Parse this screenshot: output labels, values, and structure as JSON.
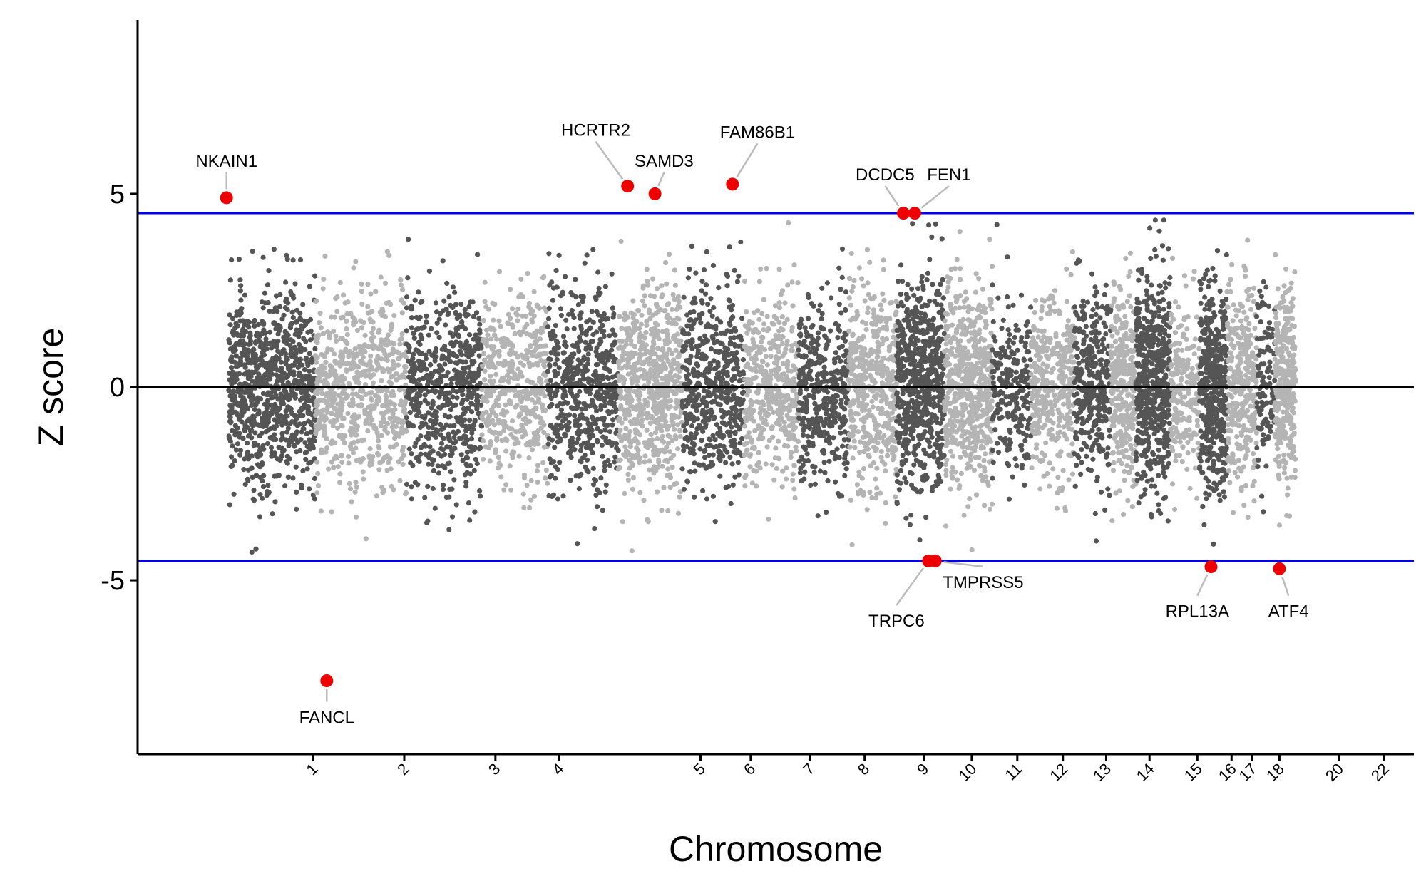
{
  "chart_data": {
    "type": "scatter",
    "subtype": "manhattan",
    "title": "",
    "xlabel": "Chromosome",
    "ylabel": "Z score",
    "ylim": [
      -9.5,
      9.5
    ],
    "yticks": [
      5,
      0,
      -5
    ],
    "ytick_labels": [
      "5",
      "0",
      "-5"
    ],
    "x_tick_labels": [
      "1",
      "2",
      "3",
      "4",
      "5",
      "6",
      "7",
      "8",
      "9",
      "10",
      "11",
      "12",
      "13",
      "14",
      "15",
      "16",
      "17",
      "18",
      "20",
      "22"
    ],
    "reference_lines": [
      {
        "name": "upper-threshold",
        "y": 4.5,
        "color": "#0000ee"
      },
      {
        "name": "zero-line",
        "y": 0,
        "color": "#000000"
      },
      {
        "name": "lower-threshold",
        "y": -4.5,
        "color": "#0000ee"
      }
    ],
    "colors": {
      "dark": "#555555",
      "light": "#b4b4b4",
      "highlight": "#ee0000",
      "leader": "#bbbbbb"
    },
    "chromosomes": [
      {
        "chr": "1",
        "start": 0.0,
        "end": 1.9,
        "shade": "dark",
        "n": 880,
        "spread": 1.3
      },
      {
        "chr": "2",
        "start": 1.9,
        "end": 3.9,
        "shade": "light",
        "n": 700,
        "spread": 1.2
      },
      {
        "chr": "3",
        "start": 3.9,
        "end": 5.55,
        "shade": "dark",
        "n": 620,
        "spread": 1.25
      },
      {
        "chr": "4",
        "start": 5.55,
        "end": 7.0,
        "shade": "light",
        "n": 480,
        "spread": 1.15
      },
      {
        "chr": "5",
        "start": 7.0,
        "end": 8.55,
        "shade": "dark",
        "n": 560,
        "spread": 1.25
      },
      {
        "chr": "6",
        "start": 8.55,
        "end": 9.95,
        "shade": "light",
        "n": 650,
        "spread": 1.25
      },
      {
        "chr": "7",
        "start": 9.95,
        "end": 11.3,
        "shade": "dark",
        "n": 520,
        "spread": 1.25
      },
      {
        "chr": "8",
        "start": 11.3,
        "end": 12.5,
        "shade": "light",
        "n": 430,
        "spread": 1.2
      },
      {
        "chr": "9",
        "start": 12.5,
        "end": 13.6,
        "shade": "dark",
        "n": 400,
        "spread": 1.2
      },
      {
        "chr": "10",
        "start": 13.6,
        "end": 14.65,
        "shade": "light",
        "n": 460,
        "spread": 1.3
      },
      {
        "chr": "11",
        "start": 14.65,
        "end": 15.7,
        "shade": "dark",
        "n": 660,
        "spread": 1.35
      },
      {
        "chr": "12",
        "start": 15.7,
        "end": 16.75,
        "shade": "light",
        "n": 600,
        "spread": 1.3
      },
      {
        "chr": "13",
        "start": 16.75,
        "end": 17.6,
        "shade": "dark",
        "n": 230,
        "spread": 1.15
      },
      {
        "chr": "14",
        "start": 17.6,
        "end": 18.55,
        "shade": "light",
        "n": 360,
        "spread": 1.2
      },
      {
        "chr": "15",
        "start": 18.55,
        "end": 19.35,
        "shade": "dark",
        "n": 330,
        "spread": 1.25
      },
      {
        "chr": "16",
        "start": 19.35,
        "end": 19.9,
        "shade": "light",
        "n": 330,
        "spread": 1.25
      },
      {
        "chr": "17",
        "start": 19.9,
        "end": 20.65,
        "shade": "dark",
        "n": 560,
        "spread": 1.35
      },
      {
        "chr": "18",
        "start": 20.65,
        "end": 21.3,
        "shade": "light",
        "n": 200,
        "spread": 1.15
      },
      {
        "chr": "19",
        "start": 21.3,
        "end": 21.9,
        "shade": "dark",
        "n": 460,
        "spread": 1.3
      },
      {
        "chr": "20",
        "start": 21.9,
        "end": 22.55,
        "shade": "light",
        "n": 330,
        "spread": 1.3
      },
      {
        "chr": "21",
        "start": 22.55,
        "end": 22.95,
        "shade": "dark",
        "n": 110,
        "spread": 1.15
      },
      {
        "chr": "22",
        "start": 22.95,
        "end": 23.4,
        "shade": "light",
        "n": 330,
        "spread": 1.3
      }
    ],
    "x_ticks": [
      1.85,
      3.85,
      5.85,
      7.25,
      10.35,
      11.45,
      12.75,
      13.95,
      15.25,
      16.3,
      17.3,
      18.3,
      19.25,
      20.2,
      21.25,
      22.0,
      22.45,
      23.05,
      24.35,
      25.35
    ],
    "x_domain": [
      -2.0,
      26.0
    ],
    "highlights": [
      {
        "gene": "NKAIN1",
        "x": -0.05,
        "z": 4.9,
        "label_x": -0.05,
        "label_z": 5.7,
        "anchor": "middle"
      },
      {
        "gene": "FANCL",
        "x": 2.15,
        "z": -7.6,
        "label_x": 2.15,
        "label_z": -8.7,
        "anchor": "middle"
      },
      {
        "gene": "HCRTR2",
        "x": 8.75,
        "z": 5.2,
        "label_x": 8.05,
        "label_z": 6.5,
        "anchor": "middle"
      },
      {
        "gene": "SAMD3",
        "x": 9.35,
        "z": 5.0,
        "label_x": 9.55,
        "label_z": 5.7,
        "anchor": "middle"
      },
      {
        "gene": "FAM86B1",
        "x": 11.05,
        "z": 5.25,
        "label_x": 11.6,
        "label_z": 6.45,
        "anchor": "middle"
      },
      {
        "gene": "DCDC5",
        "x": 14.8,
        "z": 4.5,
        "label_x": 14.4,
        "label_z": 5.35,
        "anchor": "middle"
      },
      {
        "gene": "FEN1",
        "x": 15.05,
        "z": 4.5,
        "label_x": 15.8,
        "label_z": 5.35,
        "anchor": "middle"
      },
      {
        "gene": "TRPC6",
        "x": 15.35,
        "z": -4.5,
        "label_x": 14.65,
        "label_z": -6.2,
        "anchor": "middle"
      },
      {
        "gene": "TMPRSS5",
        "x": 15.5,
        "z": -4.5,
        "label_x": 16.55,
        "label_z": -5.2,
        "anchor": "middle"
      },
      {
        "gene": "RPL13A",
        "x": 21.55,
        "z": -4.65,
        "label_x": 21.25,
        "label_z": -5.95,
        "anchor": "middle"
      },
      {
        "gene": "ATF4",
        "x": 23.05,
        "z": -4.7,
        "label_x": 23.25,
        "label_z": -5.95,
        "anchor": "middle"
      }
    ]
  }
}
